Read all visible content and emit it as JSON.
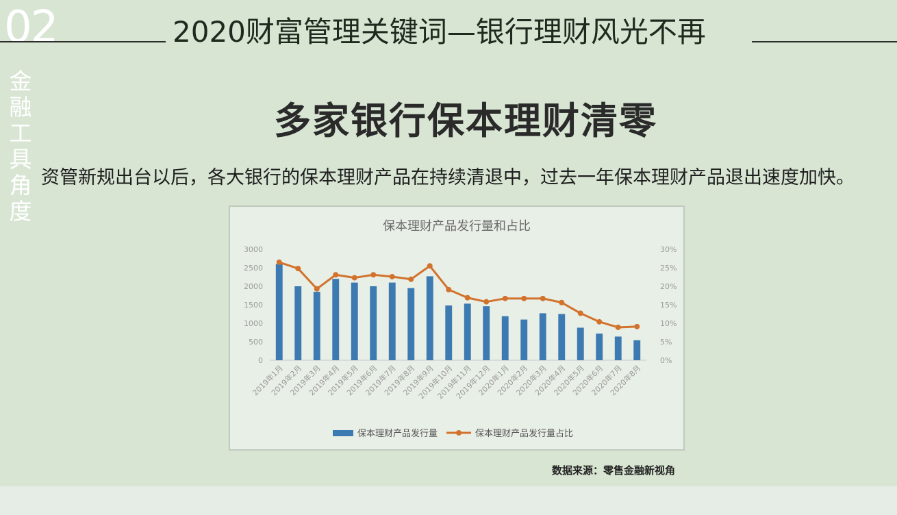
{
  "header": {
    "section_number": "02",
    "title": "2020财富管理关键词—银行理财风光不再",
    "side_label": "金融工具角度"
  },
  "heading": "多家银行保本理财清零",
  "intro_text": "资管新规出台以后，各大银行的保本理财产品在持续清退中，过去一年保本理财产品退出速度加快。",
  "source_note": "数据来源：零售金融新视角",
  "colors": {
    "bar": "#3d7ab2",
    "line": "#d2722c",
    "grid": "#cfd8cd",
    "axis_text": "#9a9a9a"
  },
  "chart_data": {
    "type": "bar",
    "title": "保本理财产品发行量和占比",
    "categories": [
      "2019年1月",
      "2019年2月",
      "2019年3月",
      "2019年4月",
      "2019年5月",
      "2019年6月",
      "2019年7月",
      "2019年8月",
      "2019年9月",
      "2019年10月",
      "2019年11月",
      "2019年12月",
      "2020年1月",
      "2020年2月",
      "2020年3月",
      "2020年4月",
      "2020年5月",
      "2020年6月",
      "2020年7月",
      "2020年8月"
    ],
    "series": [
      {
        "name": "保本理财产品发行量",
        "type": "bar",
        "axis": "left",
        "values": [
          2600,
          2000,
          1850,
          2200,
          2100,
          2000,
          2100,
          1950,
          2270,
          1480,
          1530,
          1460,
          1190,
          1100,
          1270,
          1250,
          880,
          720,
          640,
          540
        ]
      },
      {
        "name": "保本理财产品发行量占比",
        "type": "line",
        "axis": "right",
        "values": [
          26.5,
          24.8,
          19.3,
          23.1,
          22.3,
          23.1,
          22.6,
          21.9,
          25.5,
          19.1,
          16.9,
          15.8,
          16.7,
          16.7,
          16.7,
          15.6,
          12.7,
          10.4,
          8.9,
          9.1
        ]
      }
    ],
    "y_left": {
      "ylim": [
        0,
        3000
      ],
      "ticks": [
        "0",
        "500",
        "1000",
        "1500",
        "2000",
        "2500",
        "3000"
      ]
    },
    "y_right": {
      "ylim": [
        0,
        30
      ],
      "ticks": [
        "0%",
        "5%",
        "10%",
        "15%",
        "20%",
        "25%",
        "30%"
      ]
    },
    "grid": false,
    "legend_position": "bottom"
  }
}
